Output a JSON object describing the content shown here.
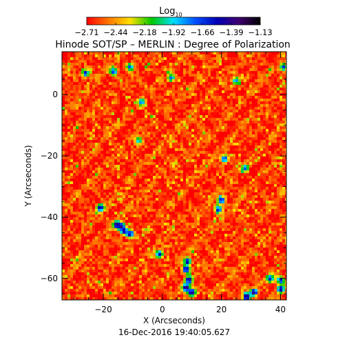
{
  "chart_data": {
    "type": "heatmap",
    "title": "Hinode SOT/SP – MERLIN : Degree of Polarization",
    "colorbar": {
      "label_base": "Log",
      "label_sub": "10",
      "range": [
        -2.71,
        -1.13
      ],
      "tick_labels": [
        "−2.71",
        "−2.44",
        "−2.18",
        "−1.92",
        "−1.66",
        "−1.39",
        "−1.13"
      ],
      "colormap": [
        "#ff0000",
        "#ff7800",
        "#ffe000",
        "#00c800",
        "#00e0ff",
        "#0050ff",
        "#0000b4",
        "#400070",
        "#000000"
      ]
    },
    "xlabel": "X (Arcseconds)",
    "ylabel": "Y (Arcseconds)",
    "xlim": [
      -34,
      42
    ],
    "ylim": [
      -67,
      14
    ],
    "x_ticks": [
      -20,
      0,
      20,
      40
    ],
    "y_ticks": [
      0,
      -20,
      -40,
      -60
    ],
    "x_tick_labels": [
      "−20",
      "0",
      "20",
      "40"
    ],
    "y_tick_labels": [
      "0",
      "−20",
      "−40",
      "−60"
    ],
    "background_value": -2.62,
    "features": [
      {
        "x": -26,
        "y": 7,
        "value": -1.55
      },
      {
        "x": -16.5,
        "y": 7.5,
        "value": -1.6
      },
      {
        "x": -11,
        "y": 9,
        "value": -1.7
      },
      {
        "x": 3,
        "y": 5.5,
        "value": -1.75
      },
      {
        "x": 25,
        "y": 4.5,
        "value": -1.8
      },
      {
        "x": -7,
        "y": -2.5,
        "value": -1.75
      },
      {
        "x": -8,
        "y": -15,
        "value": -1.85
      },
      {
        "x": 21,
        "y": -21,
        "value": -1.6
      },
      {
        "x": 28,
        "y": -24,
        "value": -1.7
      },
      {
        "x": -21,
        "y": -37,
        "value": -1.4
      },
      {
        "x": -15.5,
        "y": -42.5,
        "value": -1.3
      },
      {
        "x": -14,
        "y": -43,
        "value": -1.35
      },
      {
        "x": -13,
        "y": -44.5,
        "value": -1.4
      },
      {
        "x": -11,
        "y": -45.5,
        "value": -1.45
      },
      {
        "x": -1,
        "y": -52,
        "value": -1.5
      },
      {
        "x": 19,
        "y": -37.5,
        "value": -1.5
      },
      {
        "x": 20,
        "y": -34.5,
        "value": -1.45
      },
      {
        "x": 36.5,
        "y": -60,
        "value": -1.55
      },
      {
        "x": 8.5,
        "y": -54.5,
        "value": -1.45
      },
      {
        "x": 8,
        "y": -57,
        "value": -1.35
      },
      {
        "x": 9,
        "y": -60.5,
        "value": -1.3
      },
      {
        "x": 8,
        "y": -63,
        "value": -1.25
      },
      {
        "x": 10,
        "y": -64.5,
        "value": -1.3
      },
      {
        "x": 28.5,
        "y": -66,
        "value": -1.2
      },
      {
        "x": 31,
        "y": -64.5,
        "value": -1.3
      },
      {
        "x": 40,
        "y": -63.5,
        "value": -1.4
      },
      {
        "x": 40,
        "y": -60.5,
        "value": -1.5
      },
      {
        "x": 41,
        "y": 9,
        "value": -1.6
      }
    ]
  },
  "footer": {
    "timestamp": "16-Dec-2016 19:40:05.627"
  }
}
